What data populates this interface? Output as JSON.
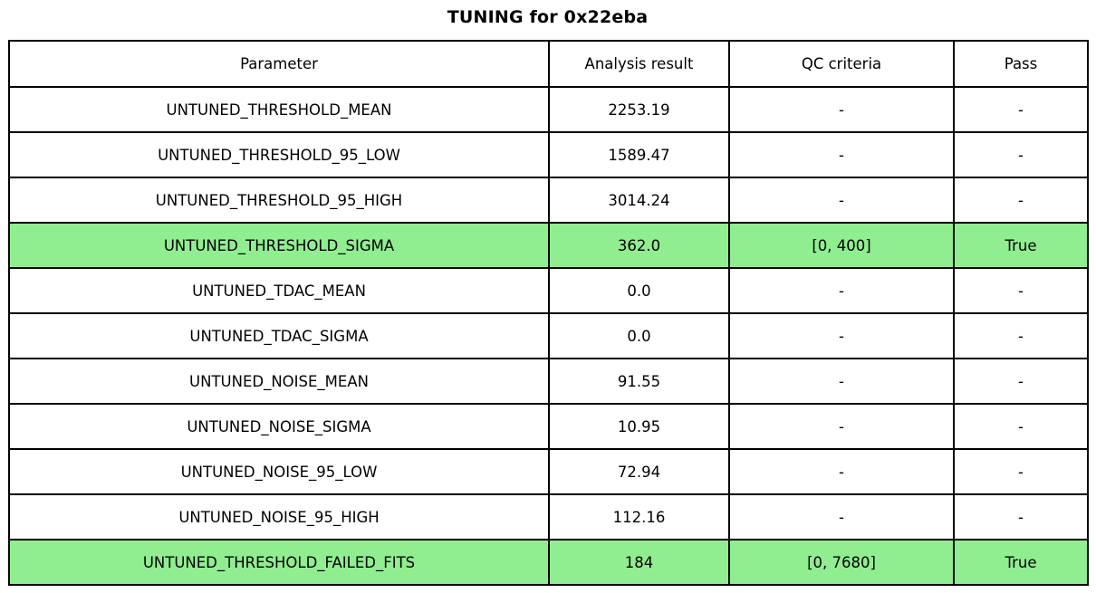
{
  "colors": {
    "highlight_green": "#90EE90",
    "row_background": "#FFFFFF",
    "border": "#000000",
    "text": "#000000"
  },
  "chart_data": {
    "type": "table",
    "title": "TUNING for 0x22eba",
    "columns": [
      "Parameter",
      "Analysis result",
      "QC criteria",
      "Pass"
    ],
    "rows": [
      {
        "cells": [
          "UNTUNED_THRESHOLD_MEAN",
          "2253.19",
          "-",
          "-"
        ],
        "highlight": false
      },
      {
        "cells": [
          "UNTUNED_THRESHOLD_95_LOW",
          "1589.47",
          "-",
          "-"
        ],
        "highlight": false
      },
      {
        "cells": [
          "UNTUNED_THRESHOLD_95_HIGH",
          "3014.24",
          "-",
          "-"
        ],
        "highlight": false
      },
      {
        "cells": [
          "UNTUNED_THRESHOLD_SIGMA",
          "362.0",
          "[0, 400]",
          "True"
        ],
        "highlight": true
      },
      {
        "cells": [
          "UNTUNED_TDAC_MEAN",
          "0.0",
          "-",
          "-"
        ],
        "highlight": false
      },
      {
        "cells": [
          "UNTUNED_TDAC_SIGMA",
          "0.0",
          "-",
          "-"
        ],
        "highlight": false
      },
      {
        "cells": [
          "UNTUNED_NOISE_MEAN",
          "91.55",
          "-",
          "-"
        ],
        "highlight": false
      },
      {
        "cells": [
          "UNTUNED_NOISE_SIGMA",
          "10.95",
          "-",
          "-"
        ],
        "highlight": false
      },
      {
        "cells": [
          "UNTUNED_NOISE_95_LOW",
          "72.94",
          "-",
          "-"
        ],
        "highlight": false
      },
      {
        "cells": [
          "UNTUNED_NOISE_95_HIGH",
          "112.16",
          "-",
          "-"
        ],
        "highlight": false
      },
      {
        "cells": [
          "UNTUNED_THRESHOLD_FAILED_FITS",
          "184",
          "[0, 7680]",
          "True"
        ],
        "highlight": true
      }
    ],
    "highlight_color": "#90EE90",
    "highlighted_rows": [
      "UNTUNED_THRESHOLD_SIGMA",
      "UNTUNED_THRESHOLD_FAILED_FITS"
    ],
    "grid": true,
    "legend_position": "none"
  }
}
